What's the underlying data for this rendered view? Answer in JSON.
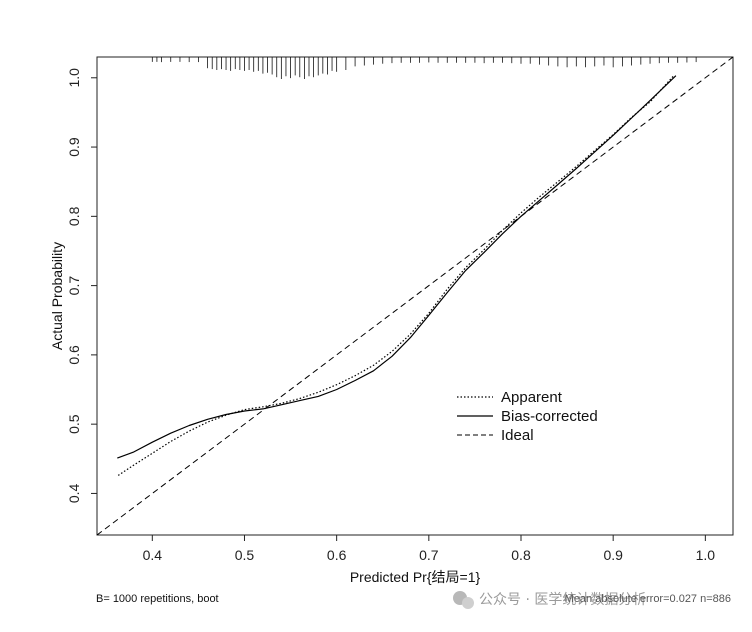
{
  "chart_data": {
    "type": "line",
    "title": "",
    "xlabel": "Predicted Pr{结局=1}",
    "ylabel": "Actual Probability",
    "xlim": [
      0.34,
      1.03
    ],
    "ylim": [
      0.34,
      1.03
    ],
    "x_ticks": [
      0.4,
      0.5,
      0.6,
      0.7,
      0.8,
      0.9,
      1.0
    ],
    "x_tick_labels": [
      "0.4",
      "0.5",
      "0.6",
      "0.7",
      "0.8",
      "0.9",
      "1.0"
    ],
    "y_ticks": [
      0.4,
      0.5,
      0.6,
      0.7,
      0.8,
      0.9,
      1.0
    ],
    "y_tick_labels": [
      "0.4",
      "0.5",
      "0.6",
      "0.7",
      "0.8",
      "0.9",
      "1.0"
    ],
    "grid": false,
    "legend_position": "lower-right",
    "series": [
      {
        "name": "Apparent",
        "style": "dotted",
        "x": [
          0.363,
          0.38,
          0.4,
          0.42,
          0.44,
          0.46,
          0.48,
          0.5,
          0.52,
          0.54,
          0.56,
          0.58,
          0.6,
          0.62,
          0.64,
          0.66,
          0.68,
          0.7,
          0.72,
          0.74,
          0.76,
          0.78,
          0.8,
          0.82,
          0.84,
          0.86,
          0.88,
          0.9,
          0.92,
          0.94,
          0.965
        ],
        "y": [
          0.426,
          0.441,
          0.458,
          0.475,
          0.49,
          0.503,
          0.513,
          0.521,
          0.525,
          0.53,
          0.537,
          0.546,
          0.557,
          0.57,
          0.585,
          0.605,
          0.63,
          0.66,
          0.695,
          0.726,
          0.752,
          0.78,
          0.805,
          0.828,
          0.85,
          0.872,
          0.895,
          0.918,
          0.943,
          0.965,
          1.002
        ]
      },
      {
        "name": "Bias-corrected",
        "style": "solid",
        "x": [
          0.362,
          0.38,
          0.4,
          0.42,
          0.44,
          0.46,
          0.48,
          0.5,
          0.52,
          0.54,
          0.56,
          0.58,
          0.6,
          0.62,
          0.64,
          0.66,
          0.68,
          0.7,
          0.72,
          0.74,
          0.76,
          0.78,
          0.8,
          0.82,
          0.84,
          0.86,
          0.88,
          0.9,
          0.92,
          0.94,
          0.968
        ],
        "y": [
          0.451,
          0.46,
          0.474,
          0.487,
          0.498,
          0.507,
          0.514,
          0.519,
          0.522,
          0.528,
          0.534,
          0.54,
          0.55,
          0.563,
          0.577,
          0.598,
          0.625,
          0.657,
          0.69,
          0.722,
          0.748,
          0.775,
          0.8,
          0.823,
          0.846,
          0.869,
          0.893,
          0.917,
          0.942,
          0.967,
          1.003
        ]
      },
      {
        "name": "Ideal",
        "style": "dashed",
        "x": [
          0.34,
          1.03
        ],
        "y": [
          0.34,
          1.03
        ]
      }
    ],
    "rug_ticks": [
      0.4,
      0.405,
      0.41,
      0.42,
      0.43,
      0.44,
      0.45,
      0.46,
      0.465,
      0.47,
      0.475,
      0.48,
      0.485,
      0.49,
      0.495,
      0.5,
      0.505,
      0.51,
      0.515,
      0.52,
      0.525,
      0.53,
      0.535,
      0.54,
      0.545,
      0.55,
      0.555,
      0.56,
      0.565,
      0.57,
      0.575,
      0.58,
      0.585,
      0.59,
      0.595,
      0.6,
      0.61,
      0.62,
      0.63,
      0.64,
      0.65,
      0.66,
      0.67,
      0.68,
      0.69,
      0.7,
      0.71,
      0.72,
      0.73,
      0.74,
      0.75,
      0.76,
      0.77,
      0.78,
      0.79,
      0.8,
      0.81,
      0.82,
      0.83,
      0.84,
      0.85,
      0.86,
      0.87,
      0.88,
      0.89,
      0.9,
      0.91,
      0.92,
      0.93,
      0.94,
      0.95,
      0.96,
      0.97,
      0.98,
      0.99
    ],
    "rug_heights": [
      0.05,
      0.05,
      0.06,
      0.05,
      0.05,
      0.06,
      0.06,
      0.4,
      0.45,
      0.5,
      0.45,
      0.5,
      0.55,
      0.45,
      0.5,
      0.55,
      0.5,
      0.6,
      0.55,
      0.7,
      0.65,
      0.75,
      0.9,
      1.0,
      0.85,
      0.95,
      0.8,
      0.9,
      1.0,
      0.85,
      0.9,
      0.8,
      0.7,
      0.75,
      0.55,
      0.6,
      0.5,
      0.3,
      0.25,
      0.2,
      0.15,
      0.12,
      0.1,
      0.1,
      0.1,
      0.08,
      0.1,
      0.1,
      0.1,
      0.1,
      0.1,
      0.12,
      0.1,
      0.1,
      0.12,
      0.15,
      0.15,
      0.2,
      0.25,
      0.3,
      0.35,
      0.3,
      0.35,
      0.3,
      0.25,
      0.35,
      0.3,
      0.25,
      0.2,
      0.15,
      0.12,
      0.1,
      0.1,
      0.08,
      0.06
    ]
  },
  "legend": {
    "apparent_label": "Apparent",
    "bias_label": "Bias-corrected",
    "ideal_label": "Ideal"
  },
  "notes": {
    "bottom_left": "B= 1000 repetitions, boot",
    "bottom_right": "Mean absolute error=0.027 n=886"
  },
  "watermark": {
    "text": "公众号 · 医学统计数据分析"
  }
}
